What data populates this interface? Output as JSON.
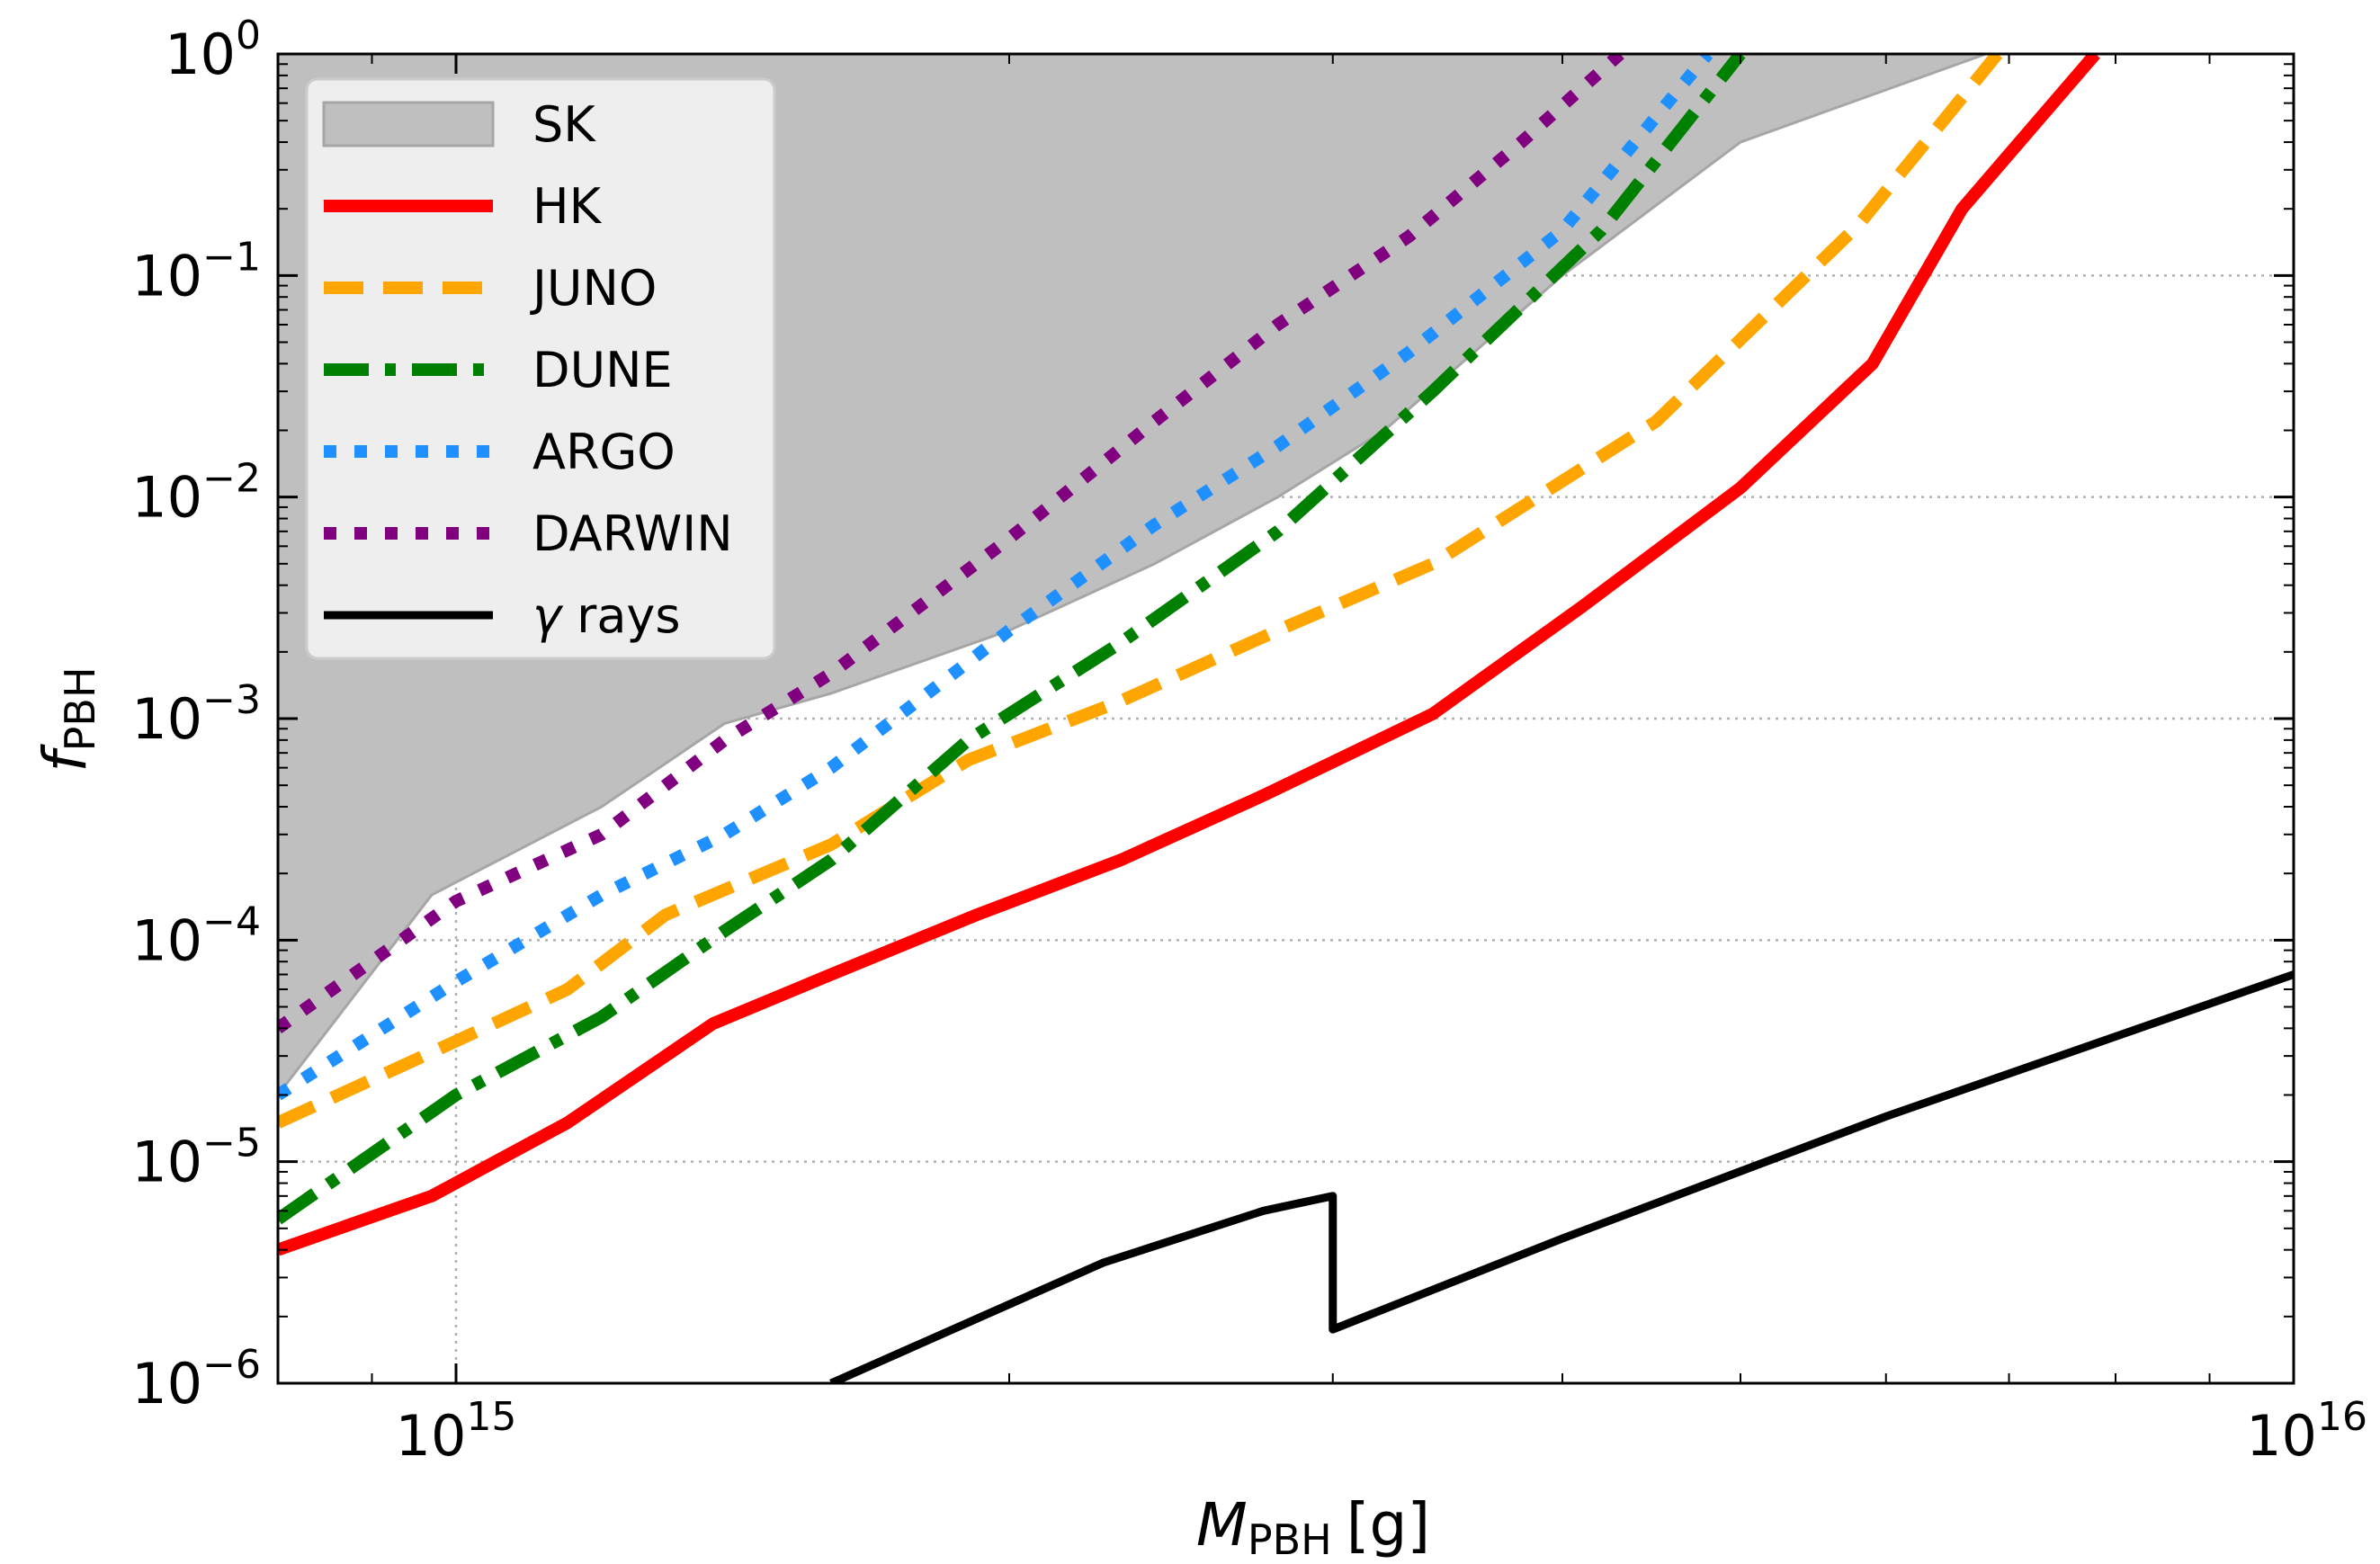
{
  "chart_data": {
    "type": "line",
    "title": "",
    "xlabel": {
      "main": "M",
      "sub": "PBH",
      "unit": "[g]"
    },
    "ylabel": {
      "main": "f",
      "sub": "PBH"
    },
    "xscale": "log",
    "yscale": "log",
    "xlim": [
      800000000000000.0,
      1e+16
    ],
    "ylim": [
      1e-06,
      1
    ],
    "grid": "dotted, major ticks",
    "legend_position": "top-left",
    "x_ticks": [
      {
        "value": 1000000000000000.0,
        "base": "10",
        "exp": "15"
      },
      {
        "value": 1e+16,
        "base": "10",
        "exp": "16"
      }
    ],
    "y_ticks": [
      {
        "value": 1,
        "base": "10",
        "exp": "0"
      },
      {
        "value": 0.1,
        "base": "10",
        "exp": "−1"
      },
      {
        "value": 0.01,
        "base": "10",
        "exp": "−2"
      },
      {
        "value": 0.001,
        "base": "10",
        "exp": "−3"
      },
      {
        "value": 0.0001,
        "base": "10",
        "exp": "−4"
      },
      {
        "value": 1e-05,
        "base": "10",
        "exp": "−5"
      },
      {
        "value": 1e-06,
        "base": "10",
        "exp": "−6"
      }
    ],
    "series": [
      {
        "name": "SK",
        "kind": "filled-region",
        "color": "#bfbfbf",
        "edge": "#a6a6a6",
        "x": [
          800000000000000.0,
          970000000000000.0,
          1200000000000000.0,
          1400000000000000.0,
          1600000000000000.0,
          2000000000000000.0,
          2400000000000000.0,
          2800000000000000.0,
          3200000000000000.0,
          4000000000000000.0,
          5000000000000000.0,
          6800000000000000.0
        ],
        "y": [
          2e-05,
          0.00016,
          0.0004,
          0.00095,
          0.0013,
          0.0025,
          0.005,
          0.01,
          0.02,
          0.1,
          0.4,
          1
        ]
      },
      {
        "name": "HK",
        "kind": "line",
        "style": "solid",
        "color": "#ff0000",
        "x": [
          800000000000000.0,
          970000000000000.0,
          1150000000000000.0,
          1380000000000000.0,
          1600000000000000.0,
          1920000000000000.0,
          2300000000000000.0,
          2750000000000000.0,
          3400000000000000.0,
          4100000000000000.0,
          5000000000000000.0,
          5900000000000000.0,
          6600000000000000.0,
          7800000000000000.0
        ],
        "y": [
          4e-06,
          7e-06,
          1.5e-05,
          4.2e-05,
          7e-05,
          0.00013,
          0.00023,
          0.00045,
          0.00105,
          0.0032,
          0.011,
          0.04,
          0.2,
          1
        ]
      },
      {
        "name": "JUNO",
        "kind": "line",
        "style": "dashed",
        "color": "#ffa500",
        "x": [
          800000000000000.0,
          1000000000000000.0,
          1150000000000000.0,
          1300000000000000.0,
          1600000000000000.0,
          1900000000000000.0,
          2300000000000000.0,
          2800000000000000.0,
          3400000000000000.0,
          4500000000000000.0,
          5800000000000000.0,
          6900000000000000.0
        ],
        "y": [
          1.5e-05,
          3.5e-05,
          6e-05,
          0.00013,
          0.00027,
          0.00065,
          0.0012,
          0.0025,
          0.005,
          0.022,
          0.17,
          1
        ]
      },
      {
        "name": "DUNE",
        "kind": "line",
        "style": "dashdot",
        "color": "#008000",
        "x": [
          800000000000000.0,
          1000000000000000.0,
          1200000000000000.0,
          1400000000000000.0,
          1600000000000000.0,
          1900000000000000.0,
          2300000000000000.0,
          2800000000000000.0,
          3400000000000000.0,
          4200000000000000.0,
          5000000000000000.0
        ],
        "y": [
          5.5e-06,
          2e-05,
          4.5e-05,
          0.00011,
          0.00023,
          0.0008,
          0.0022,
          0.007,
          0.03,
          0.16,
          1
        ]
      },
      {
        "name": "ARGO",
        "kind": "line",
        "style": "dotted",
        "color": "#1e90ff",
        "x": [
          800000000000000.0,
          1000000000000000.0,
          1200000000000000.0,
          1400000000000000.0,
          1600000000000000.0,
          2000000000000000.0,
          2400000000000000.0,
          2800000000000000.0,
          3300000000000000.0,
          4000000000000000.0,
          4800000000000000.0
        ],
        "y": [
          2e-05,
          6.5e-05,
          0.00016,
          0.0003,
          0.0006,
          0.0025,
          0.0075,
          0.017,
          0.045,
          0.16,
          1
        ]
      },
      {
        "name": "DARWIN",
        "kind": "line",
        "style": "dotted",
        "color": "#800080",
        "x": [
          800000000000000.0,
          1000000000000000.0,
          1200000000000000.0,
          1400000000000000.0,
          1600000000000000.0,
          2000000000000000.0,
          2400000000000000.0,
          2800000000000000.0,
          3300000000000000.0,
          3800000000000000.0,
          4300000000000000.0
        ],
        "y": [
          4e-05,
          0.00015,
          0.0003,
          0.0008,
          0.0016,
          0.0065,
          0.022,
          0.06,
          0.15,
          0.4,
          1
        ]
      },
      {
        "name": "γ rays",
        "kind": "line",
        "style": "solid",
        "color": "#000000",
        "x": [
          1600000000000000.0,
          2250000000000000.0,
          2750000000000000.0,
          3000000000000000.0,
          3000000000000000.0,
          4000000000000000.0,
          6000000000000000.0,
          1e+16
        ],
        "y": [
          1e-06,
          3.5e-06,
          6e-06,
          7e-06,
          1.75e-06,
          4.5e-06,
          1.6e-05,
          7e-05
        ]
      }
    ]
  }
}
